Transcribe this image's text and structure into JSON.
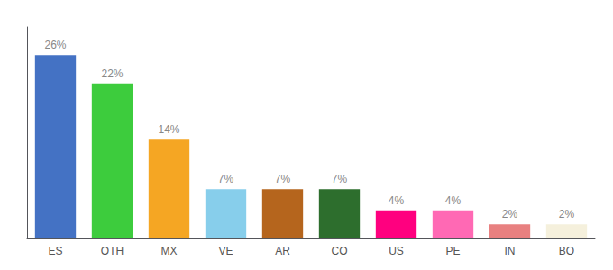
{
  "chart_data": {
    "type": "bar",
    "categories": [
      "ES",
      "OTH",
      "MX",
      "VE",
      "AR",
      "CO",
      "US",
      "PE",
      "IN",
      "BO"
    ],
    "values": [
      26,
      22,
      14,
      7,
      7,
      7,
      4,
      4,
      2,
      2
    ],
    "value_labels": [
      "26%",
      "22%",
      "14%",
      "7%",
      "7%",
      "7%",
      "4%",
      "4%",
      "2%",
      "2%"
    ],
    "colors": [
      "#4472c4",
      "#3dcc3d",
      "#f5a623",
      "#87ceeb",
      "#b5651d",
      "#2d6e2d",
      "#ff007f",
      "#ff69b4",
      "#e88080",
      "#f5f0dc"
    ],
    "ylim": [
      0,
      30
    ],
    "data_labels": true,
    "tick_labels": "x",
    "grid": false
  }
}
